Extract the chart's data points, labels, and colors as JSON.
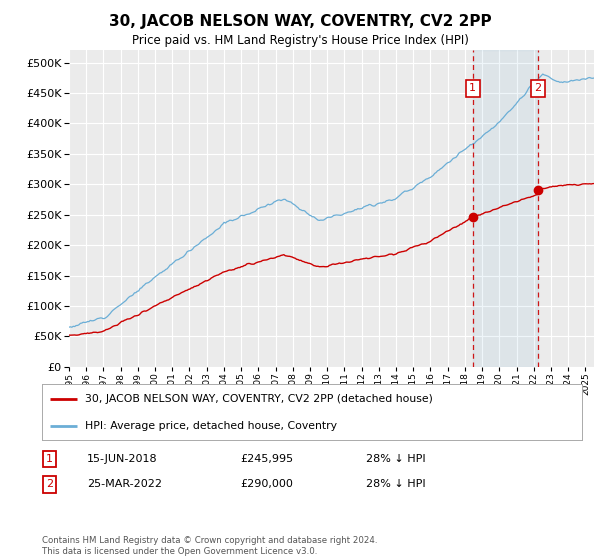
{
  "title": "30, JACOB NELSON WAY, COVENTRY, CV2 2PP",
  "subtitle": "Price paid vs. HM Land Registry's House Price Index (HPI)",
  "hpi_label": "HPI: Average price, detached house, Coventry",
  "price_label": "30, JACOB NELSON WAY, COVENTRY, CV2 2PP (detached house)",
  "annotation1": {
    "num": "1",
    "date": "15-JUN-2018",
    "price": "£245,995",
    "note": "28% ↓ HPI",
    "x_year": 2018.46
  },
  "annotation2": {
    "num": "2",
    "date": "25-MAR-2022",
    "price": "£290,000",
    "note": "28% ↓ HPI",
    "x_year": 2022.23
  },
  "sale1_price": 245995,
  "sale2_price": 290000,
  "hpi_color": "#6baed6",
  "price_color": "#cc0000",
  "vline_color": "#cc0000",
  "ylim": [
    0,
    520000
  ],
  "yticks": [
    0,
    50000,
    100000,
    150000,
    200000,
    250000,
    300000,
    350000,
    400000,
    450000,
    500000
  ],
  "xlim": [
    1995,
    2025.5
  ],
  "footer": "Contains HM Land Registry data © Crown copyright and database right 2024.\nThis data is licensed under the Open Government Licence v3.0.",
  "background_color": "#ffffff",
  "plot_bg_color": "#ebebeb"
}
